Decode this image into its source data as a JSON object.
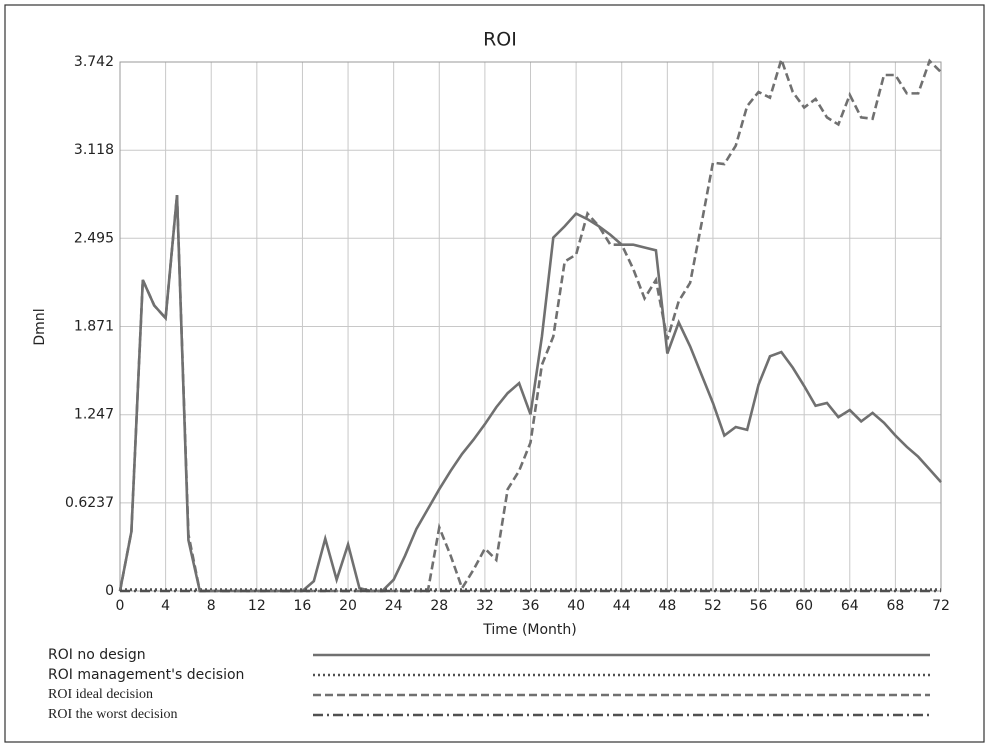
{
  "chart_data": {
    "type": "line",
    "title": "ROI",
    "y_label": "Dmnl",
    "x_label": "Time (Month)",
    "xlim": [
      0,
      72
    ],
    "ylim": [
      0,
      3.742
    ],
    "xticks": [
      0,
      4,
      8,
      12,
      16,
      20,
      24,
      28,
      32,
      36,
      40,
      44,
      48,
      52,
      56,
      60,
      64,
      68,
      72
    ],
    "yticks": [
      0,
      0.6237,
      1.247,
      1.871,
      2.495,
      3.118,
      3.742
    ],
    "grid": true,
    "x": [
      0,
      1,
      2,
      3,
      4,
      5,
      6,
      7,
      8,
      9,
      10,
      11,
      12,
      13,
      14,
      15,
      16,
      17,
      18,
      19,
      20,
      21,
      22,
      23,
      24,
      25,
      26,
      27,
      28,
      29,
      30,
      31,
      32,
      33,
      34,
      35,
      36,
      37,
      38,
      39,
      40,
      41,
      42,
      43,
      44,
      45,
      46,
      47,
      48,
      49,
      50,
      51,
      52,
      53,
      54,
      55,
      56,
      57,
      58,
      59,
      60,
      61,
      62,
      63,
      64,
      65,
      66,
      67,
      68,
      69,
      70,
      71,
      72
    ],
    "series": [
      {
        "name": "ROI no design",
        "color": "#707070",
        "dash": "solid",
        "values": [
          0,
          0.42,
          2.2,
          2.02,
          1.93,
          2.8,
          0.36,
          0,
          0,
          0,
          0,
          0,
          0,
          0,
          0,
          0,
          0,
          0.07,
          0.37,
          0.08,
          0.33,
          0.02,
          0,
          0,
          0.08,
          0.25,
          0.44,
          0.58,
          0.72,
          0.85,
          0.97,
          1.07,
          1.18,
          1.3,
          1.4,
          1.47,
          1.25,
          1.8,
          2.5,
          2.58,
          2.67,
          2.63,
          2.58,
          2.52,
          2.45,
          2.45,
          2.43,
          2.41,
          1.68,
          1.9,
          1.73,
          1.53,
          1.33,
          1.1,
          1.16,
          1.14,
          1.46,
          1.66,
          1.69,
          1.58,
          1.45,
          1.31,
          1.33,
          1.23,
          1.28,
          1.2,
          1.26,
          1.19,
          1.1,
          1.02,
          0.95,
          0.86,
          0.77
        ]
      },
      {
        "name": "ROI management's decision",
        "color": "#505050",
        "dash": "dotted",
        "values": [
          0.01,
          0.01,
          0.01,
          0.01,
          0.01,
          0.01,
          0.01,
          0.01,
          0.01,
          0.01,
          0.01,
          0.01,
          0.01,
          0.01,
          0.01,
          0.01,
          0.01,
          0.01,
          0.01,
          0.01,
          0.01,
          0.01,
          0.01,
          0.01,
          0.01,
          0.01,
          0.01,
          0.01,
          0.01,
          0.01,
          0.01,
          0.01,
          0.01,
          0.01,
          0.01,
          0.01,
          0.01,
          0.01,
          0.01,
          0.01,
          0.01,
          0.01,
          0.01,
          0.01,
          0.01,
          0.01,
          0.01,
          0.01,
          0.01,
          0.01,
          0.01,
          0.01,
          0.01,
          0.01,
          0.01,
          0.01,
          0.01,
          0.01,
          0.01,
          0.01,
          0.01,
          0.01,
          0.01,
          0.01,
          0.01,
          0.01,
          0.01,
          0.01,
          0.01,
          0.01,
          0.01,
          0.01,
          0.01
        ]
      },
      {
        "name": "ROI ideal decision",
        "color": "#707070",
        "dash": "dashed",
        "values": [
          0,
          0.42,
          2.2,
          2.02,
          1.93,
          2.8,
          0.4,
          0,
          0,
          0,
          0,
          0,
          0,
          0,
          0,
          0,
          0,
          0,
          0,
          0,
          0,
          0,
          0,
          0,
          0,
          0,
          0,
          0,
          0.45,
          0.25,
          0.02,
          0.15,
          0.3,
          0.22,
          0.72,
          0.85,
          1.05,
          1.6,
          1.8,
          2.33,
          2.38,
          2.67,
          2.58,
          2.45,
          2.45,
          2.28,
          2.07,
          2.2,
          1.78,
          2.05,
          2.18,
          2.6,
          3.03,
          3.02,
          3.15,
          3.43,
          3.53,
          3.49,
          3.76,
          3.53,
          3.42,
          3.48,
          3.35,
          3.3,
          3.51,
          3.35,
          3.34,
          3.65,
          3.65,
          3.52,
          3.52,
          3.75,
          3.67
        ]
      },
      {
        "name": "ROI the worst decision",
        "color": "#505050",
        "dash": "dashdot",
        "values": [
          0,
          0,
          0,
          0,
          0,
          0,
          0,
          0,
          0,
          0,
          0,
          0,
          0,
          0,
          0,
          0,
          0,
          0,
          0,
          0,
          0,
          0,
          0,
          0,
          0,
          0,
          0,
          0,
          0,
          0,
          0,
          0,
          0,
          0,
          0,
          0,
          0,
          0,
          0,
          0,
          0,
          0,
          0,
          0,
          0,
          0,
          0,
          0,
          0,
          0,
          0,
          0,
          0,
          0,
          0,
          0,
          0,
          0,
          0,
          0,
          0,
          0,
          0,
          0,
          0,
          0,
          0,
          0,
          0,
          0,
          0,
          0,
          0
        ]
      }
    ]
  }
}
